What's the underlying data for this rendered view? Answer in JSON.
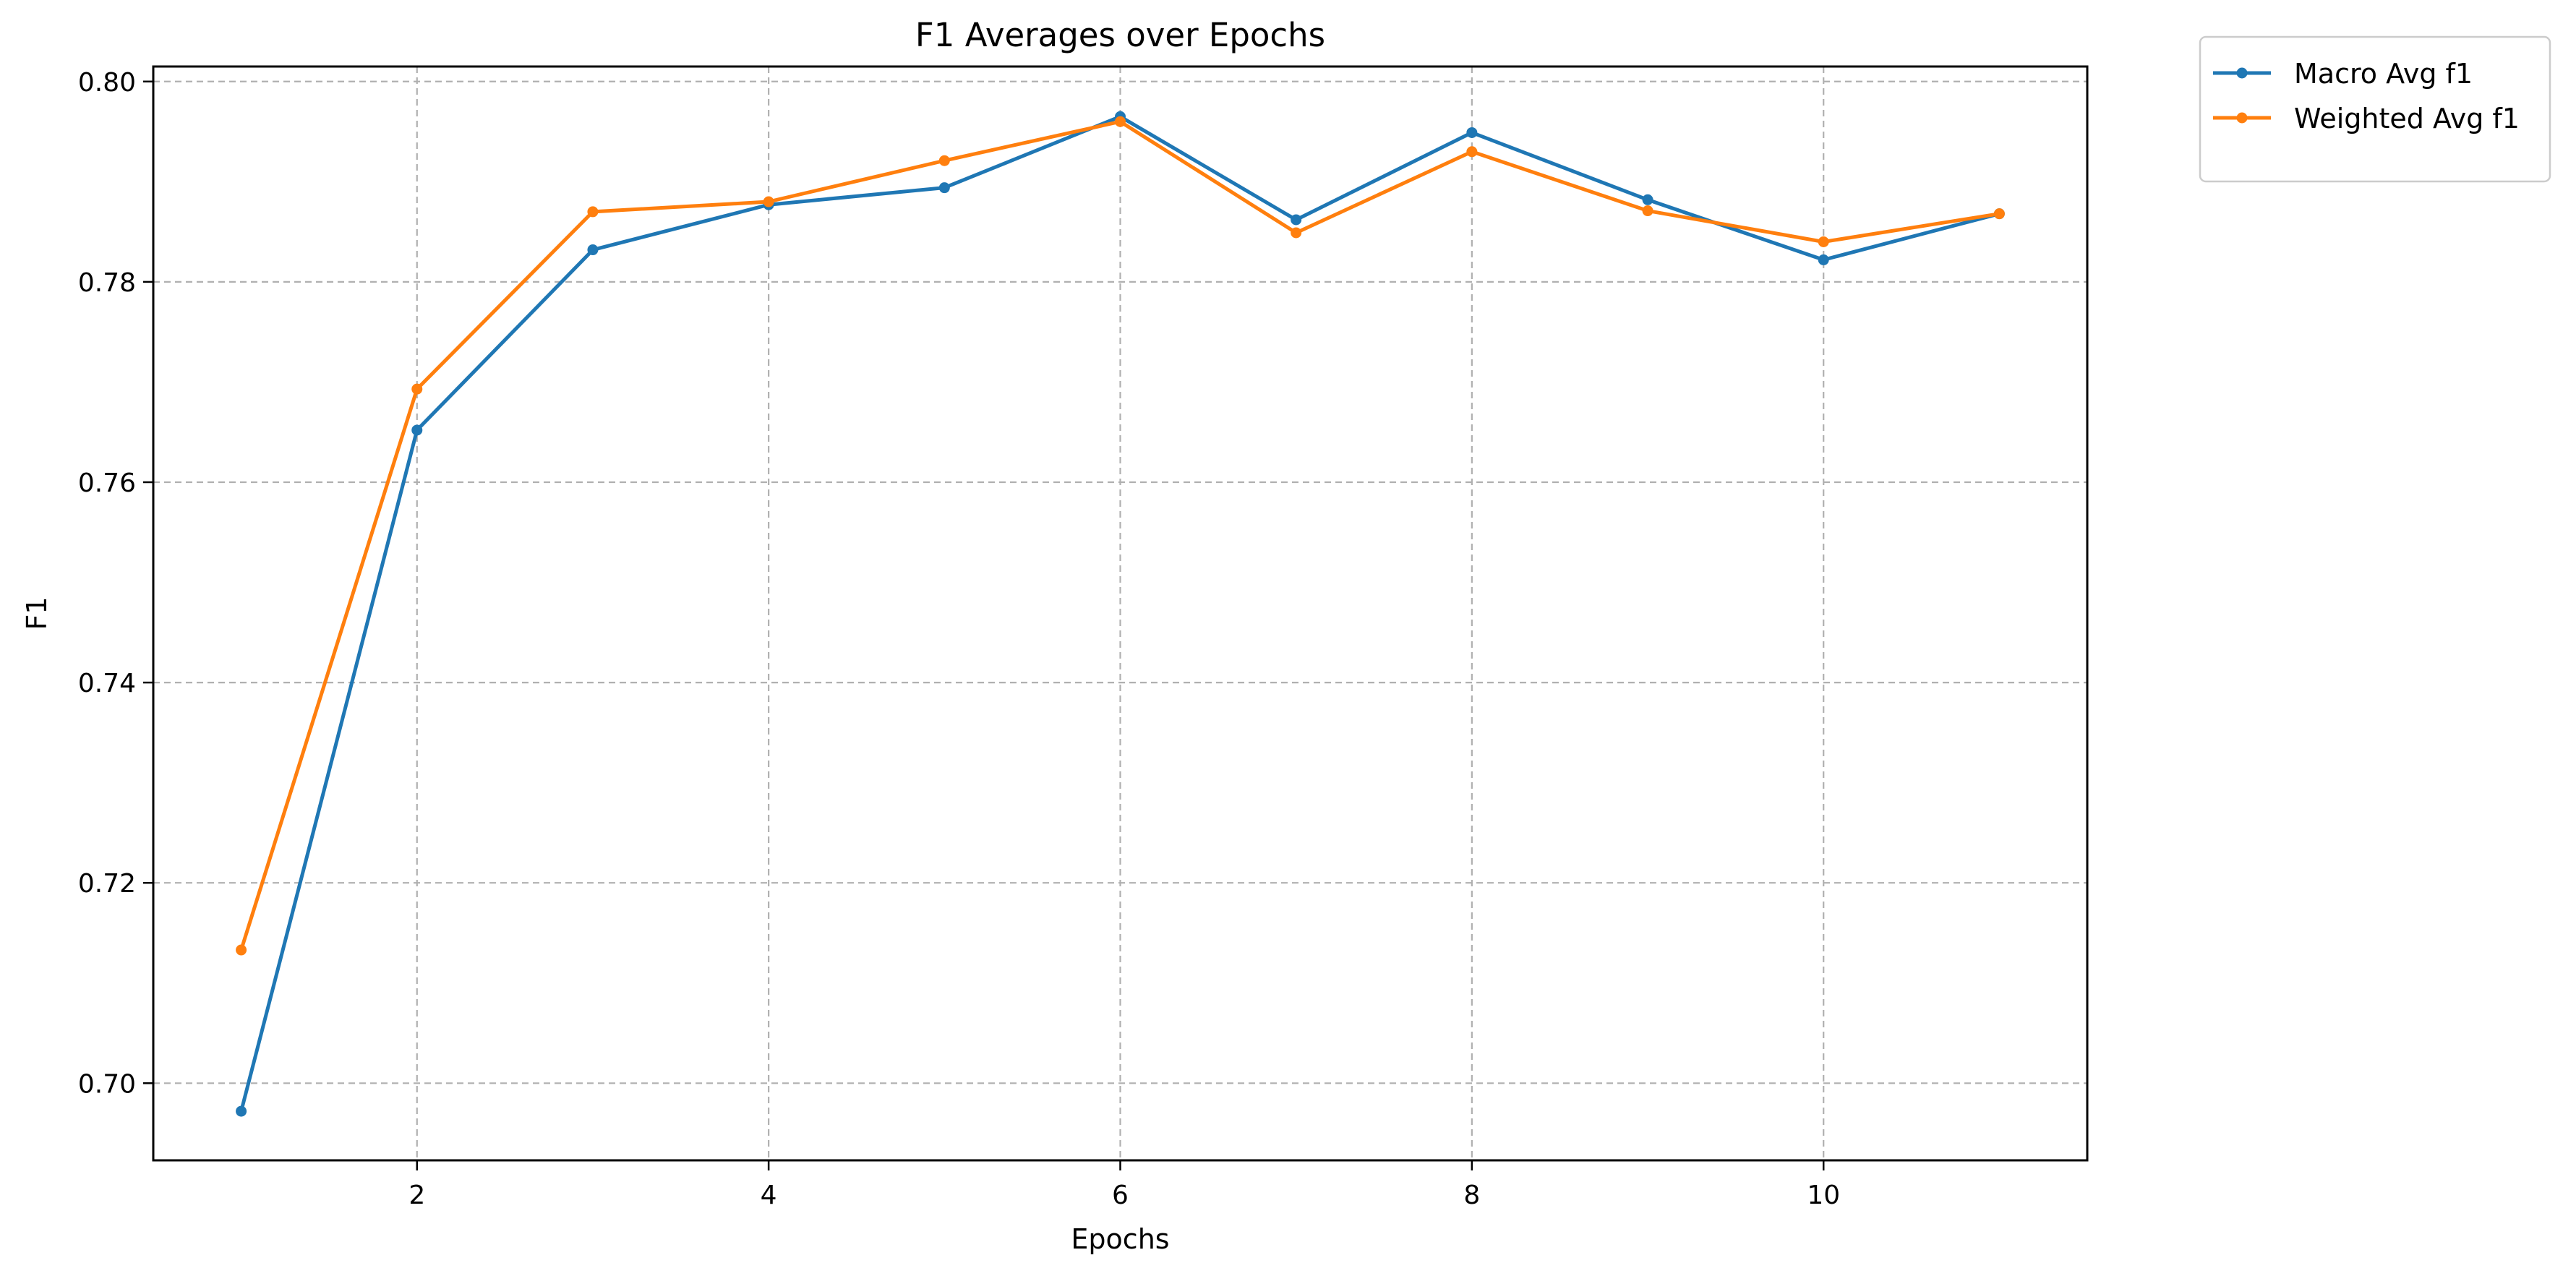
{
  "chart_data": {
    "type": "line",
    "title": "F1 Averages over Epochs",
    "xlabel": "Epochs",
    "ylabel": "F1",
    "xlim": [
      0.5,
      11.5
    ],
    "ylim": [
      0.6923,
      0.8015
    ],
    "x_ticks": [
      2,
      4,
      6,
      8,
      10
    ],
    "x_tick_labels": [
      "2",
      "4",
      "6",
      "8",
      "10"
    ],
    "y_ticks": [
      0.7,
      0.72,
      0.74,
      0.76,
      0.78,
      0.8
    ],
    "y_tick_labels": [
      "0.70",
      "0.72",
      "0.74",
      "0.76",
      "0.78",
      "0.80"
    ],
    "grid": true,
    "legend_position": "outside top-right",
    "x": [
      1,
      2,
      3,
      4,
      5,
      6,
      7,
      8,
      9,
      10,
      11
    ],
    "series": [
      {
        "name": "Macro Avg f1",
        "color": "#1f77b4",
        "values": [
          0.6972,
          0.7652,
          0.7832,
          0.7877,
          0.7894,
          0.7965,
          0.7862,
          0.7949,
          0.7882,
          0.7822,
          0.7868
        ]
      },
      {
        "name": "Weighted Avg f1",
        "color": "#ff7f0e",
        "values": [
          0.7133,
          0.7693,
          0.787,
          0.788,
          0.7921,
          0.796,
          0.7849,
          0.793,
          0.7871,
          0.784,
          0.7868
        ]
      }
    ]
  }
}
